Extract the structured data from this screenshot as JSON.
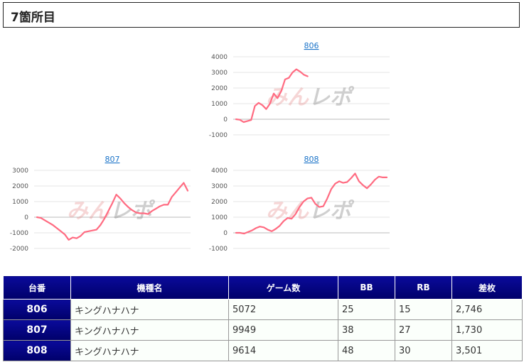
{
  "page": {
    "heading": "7箇所目"
  },
  "watermark": {
    "part1": "みん",
    "part2": "レポ",
    "color1": "#e07070",
    "color2": "#555555"
  },
  "colors": {
    "line": "#ff6b81",
    "grid": "#e6e6e6",
    "zero": "#bbbbbb",
    "link": "#1a73c8",
    "header": "#00007a"
  },
  "chart_data": [
    {
      "type": "line",
      "title": "806",
      "yticks": [
        4000,
        3000,
        2000,
        1000,
        0,
        -1000
      ],
      "ylim": [
        -1000,
        4000
      ],
      "x": [
        0,
        1,
        2,
        3,
        4,
        5,
        6,
        7,
        8,
        9,
        10,
        11,
        12,
        13,
        14,
        15,
        16,
        17,
        18,
        19
      ],
      "values": [
        0,
        -30,
        -180,
        -120,
        -50,
        850,
        1050,
        900,
        650,
        1000,
        1650,
        1350,
        1800,
        2550,
        2650,
        3000,
        3200,
        3050,
        2850,
        2750
      ],
      "xmax": 40
    },
    {
      "type": "line",
      "title": "807",
      "yticks": [
        3000,
        2000,
        1000,
        0,
        -1000,
        -2000
      ],
      "ylim": [
        -2000,
        3000
      ],
      "x": [
        0,
        1,
        2,
        3,
        4,
        5,
        6,
        7,
        8,
        9,
        10,
        11,
        12,
        13,
        14,
        15,
        16,
        17,
        18,
        19,
        20,
        21,
        22,
        23,
        24,
        25,
        26,
        27,
        28,
        29,
        30,
        31,
        32,
        33,
        34,
        35,
        36,
        37,
        38
      ],
      "values": [
        0,
        -50,
        -200,
        -350,
        -500,
        -700,
        -900,
        -1100,
        -1450,
        -1300,
        -1350,
        -1200,
        -950,
        -900,
        -850,
        -800,
        -500,
        -100,
        400,
        900,
        1450,
        1200,
        900,
        650,
        450,
        300,
        250,
        250,
        200,
        400,
        550,
        700,
        800,
        800,
        1300,
        1600,
        1900,
        2200,
        1700
      ],
      "xmax": 38
    },
    {
      "type": "line",
      "title": "808",
      "yticks": [
        4000,
        3000,
        2000,
        1000,
        0,
        -1000
      ],
      "ylim": [
        -1000,
        4000
      ],
      "x": [
        0,
        1,
        2,
        3,
        4,
        5,
        6,
        7,
        8,
        9,
        10,
        11,
        12,
        13,
        14,
        15,
        16,
        17,
        18,
        19,
        20,
        21,
        22,
        23,
        24,
        25,
        26,
        27,
        28,
        29,
        30,
        31,
        32,
        33,
        34,
        35,
        36,
        37,
        38
      ],
      "values": [
        0,
        0,
        -50,
        50,
        150,
        300,
        400,
        350,
        200,
        100,
        250,
        450,
        750,
        950,
        900,
        1200,
        1650,
        2000,
        2200,
        2250,
        1850,
        1650,
        1700,
        2200,
        2800,
        3150,
        3300,
        3200,
        3250,
        3500,
        3800,
        3300,
        3050,
        2850,
        3100,
        3400,
        3600,
        3550,
        3550
      ],
      "xmax": 38
    }
  ],
  "table": {
    "headers": [
      "台番",
      "機種名",
      "ゲーム数",
      "BB",
      "RB",
      "差枚"
    ],
    "rows": [
      {
        "num": "806",
        "name": "キングハナハナ",
        "games": "5072",
        "bb": "25",
        "rb": "15",
        "diff": "2,746"
      },
      {
        "num": "807",
        "name": "キングハナハナ",
        "games": "9949",
        "bb": "38",
        "rb": "27",
        "diff": "1,730"
      },
      {
        "num": "808",
        "name": "キングハナハナ",
        "games": "9614",
        "bb": "48",
        "rb": "30",
        "diff": "3,501"
      }
    ]
  }
}
